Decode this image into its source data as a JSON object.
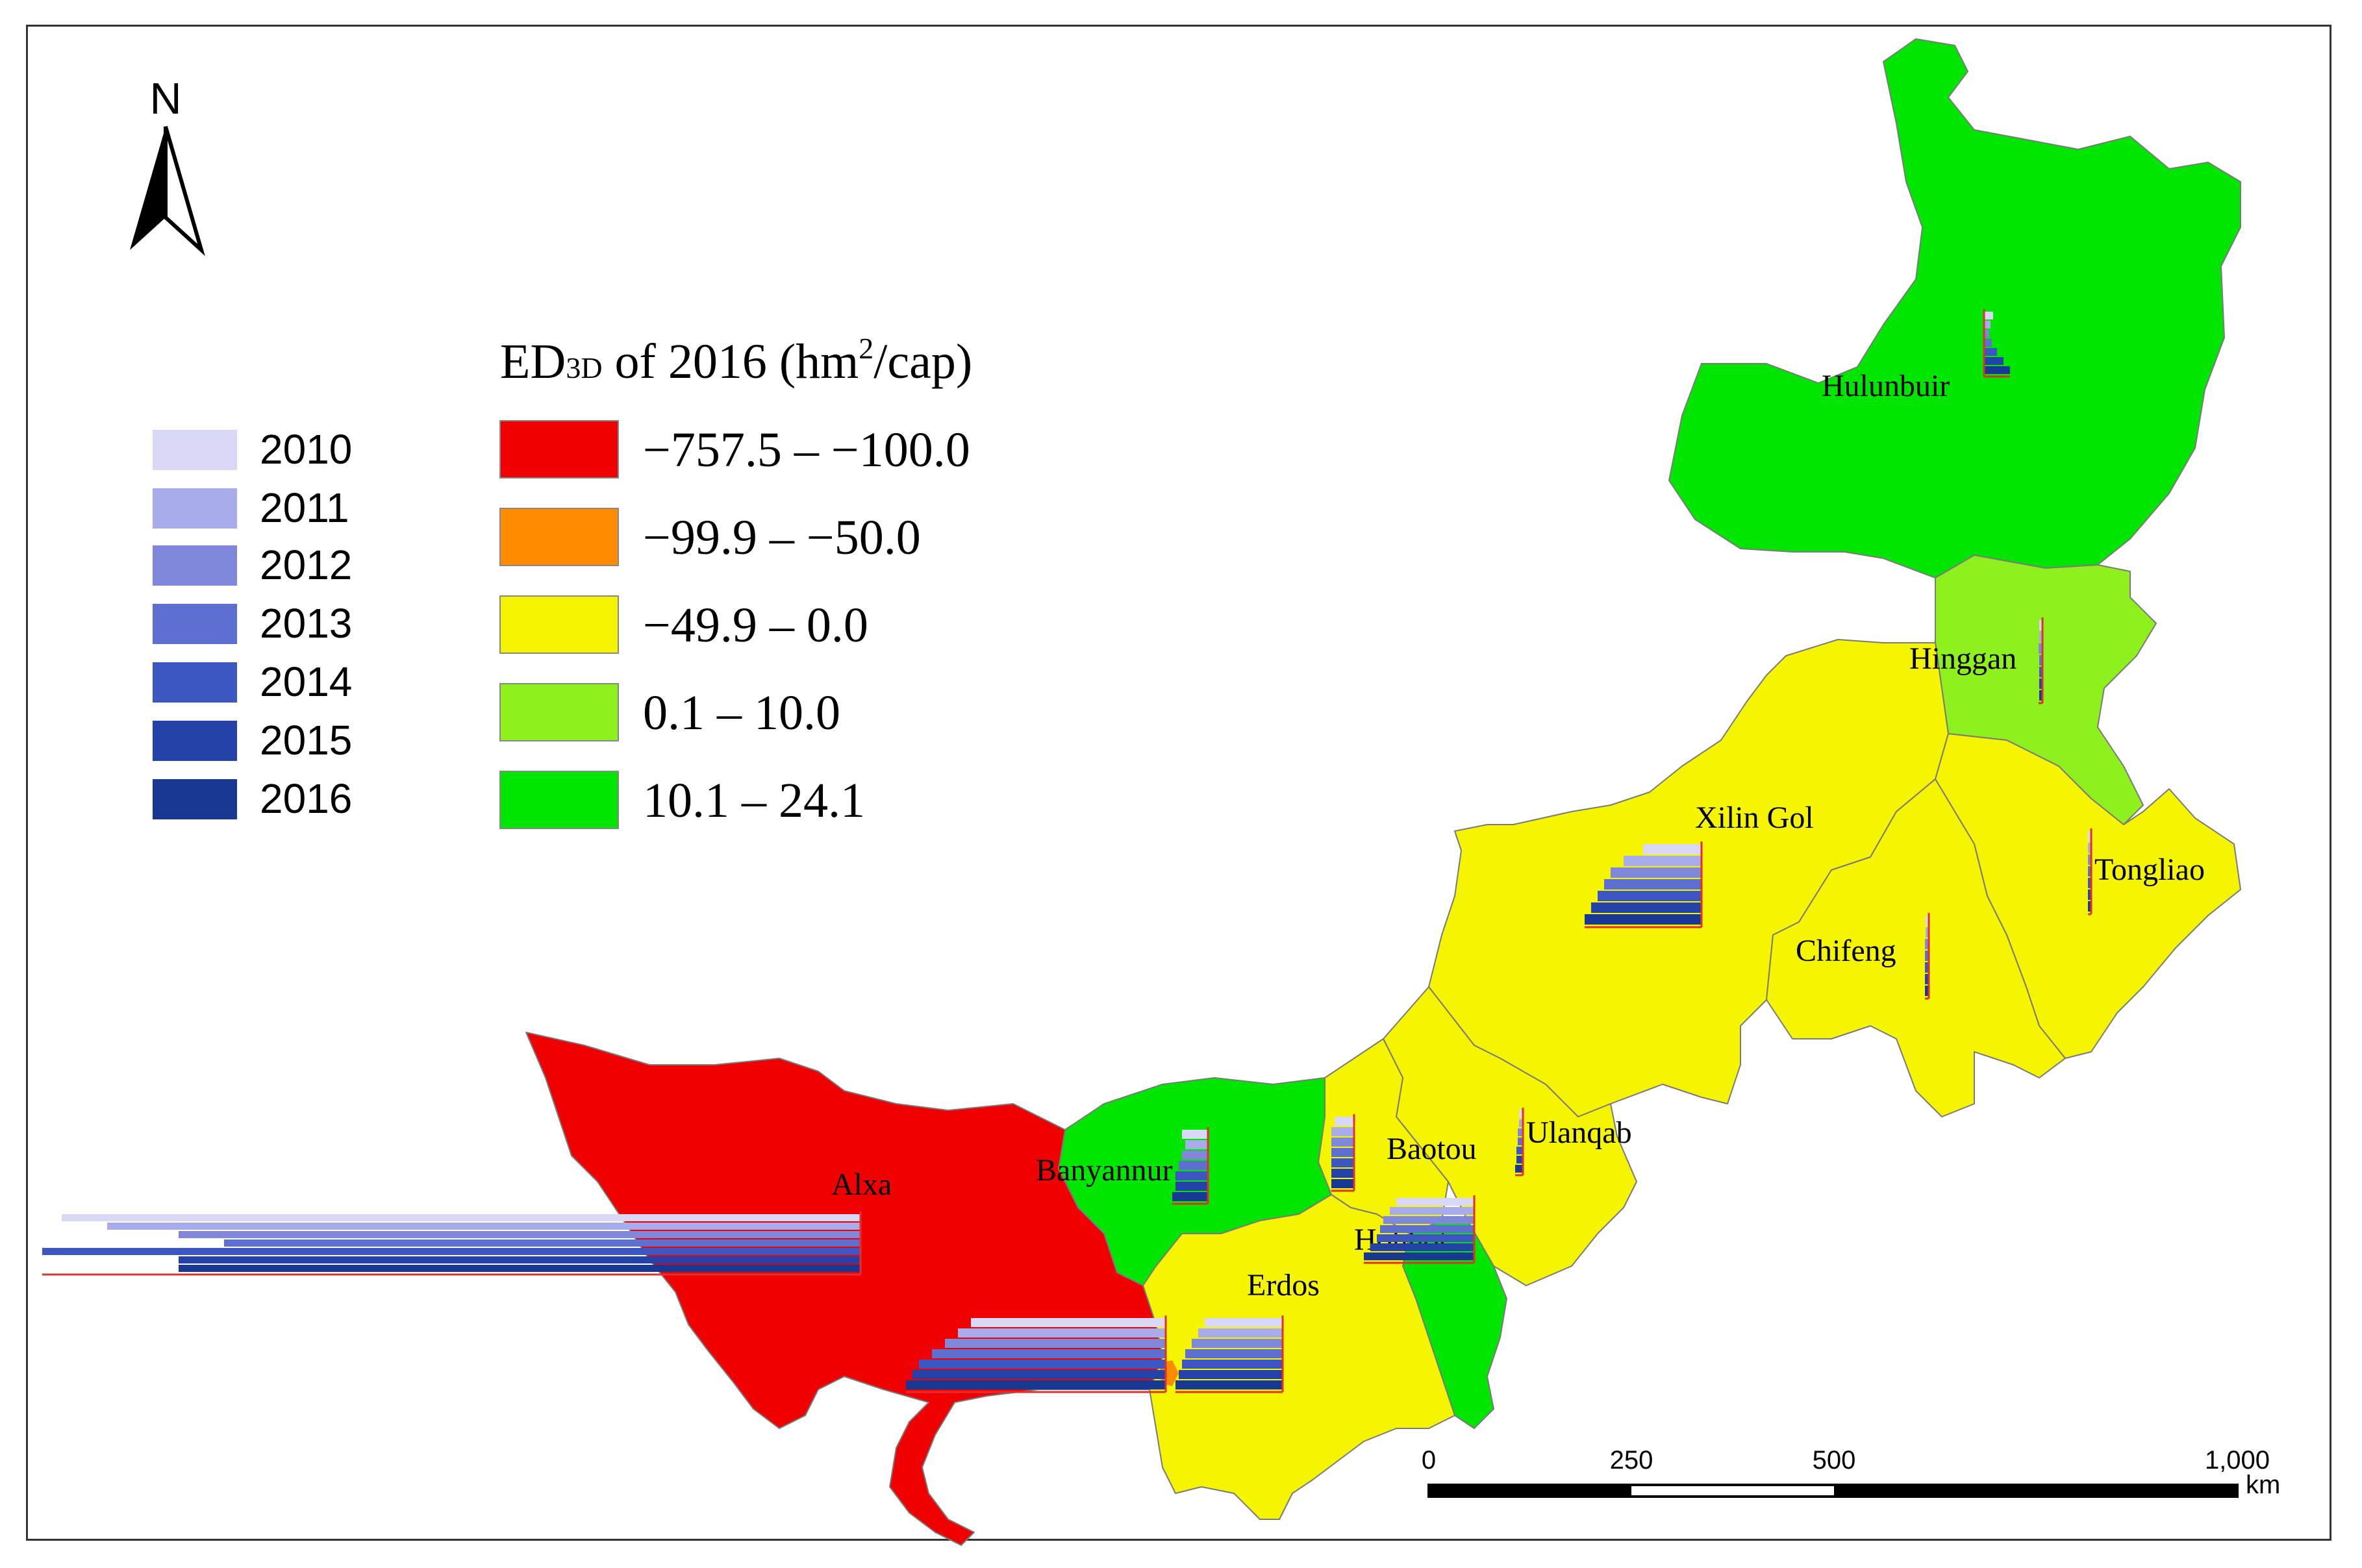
{
  "north_arrow": {
    "label": "N"
  },
  "year_legend": {
    "entries": [
      {
        "year": "2010",
        "color": "#d9d9f7"
      },
      {
        "year": "2011",
        "color": "#a8acea"
      },
      {
        "year": "2012",
        "color": "#7f88da"
      },
      {
        "year": "2013",
        "color": "#5d6fd0"
      },
      {
        "year": "2014",
        "color": "#3c57c2"
      },
      {
        "year": "2015",
        "color": "#2343aa"
      },
      {
        "year": "2016",
        "color": "#173893"
      }
    ]
  },
  "class_legend": {
    "title_pre": "ED",
    "title_sub": "3D",
    "title_mid": " of 2016 (hm",
    "title_sup": "2",
    "title_post": "/cap)",
    "classes": [
      {
        "label": "−757.5 – −100.0",
        "color": "#f00000"
      },
      {
        "label": "−99.9 – −50.0",
        "color": "#ff8c00"
      },
      {
        "label": "−49.9 – 0.0",
        "color": "#f5f500"
      },
      {
        "label": "0.1 – 10.0",
        "color": "#8ef01c"
      },
      {
        "label": "10.1 – 24.1",
        "color": "#00e600"
      }
    ]
  },
  "regions": [
    {
      "name": "Hulunbuir"
    },
    {
      "name": "Hinggan"
    },
    {
      "name": "Xilin Gol"
    },
    {
      "name": "Tongliao"
    },
    {
      "name": "Chifeng"
    },
    {
      "name": "Ulanqab"
    },
    {
      "name": "Baotou"
    },
    {
      "name": "Banyannur"
    },
    {
      "name": "Hohhot"
    },
    {
      "name": "Erdos"
    },
    {
      "name": "Alxa"
    }
  ],
  "scale_bar": {
    "ticks": [
      "0",
      "250",
      "500",
      "1,000"
    ],
    "unit": "km"
  }
}
